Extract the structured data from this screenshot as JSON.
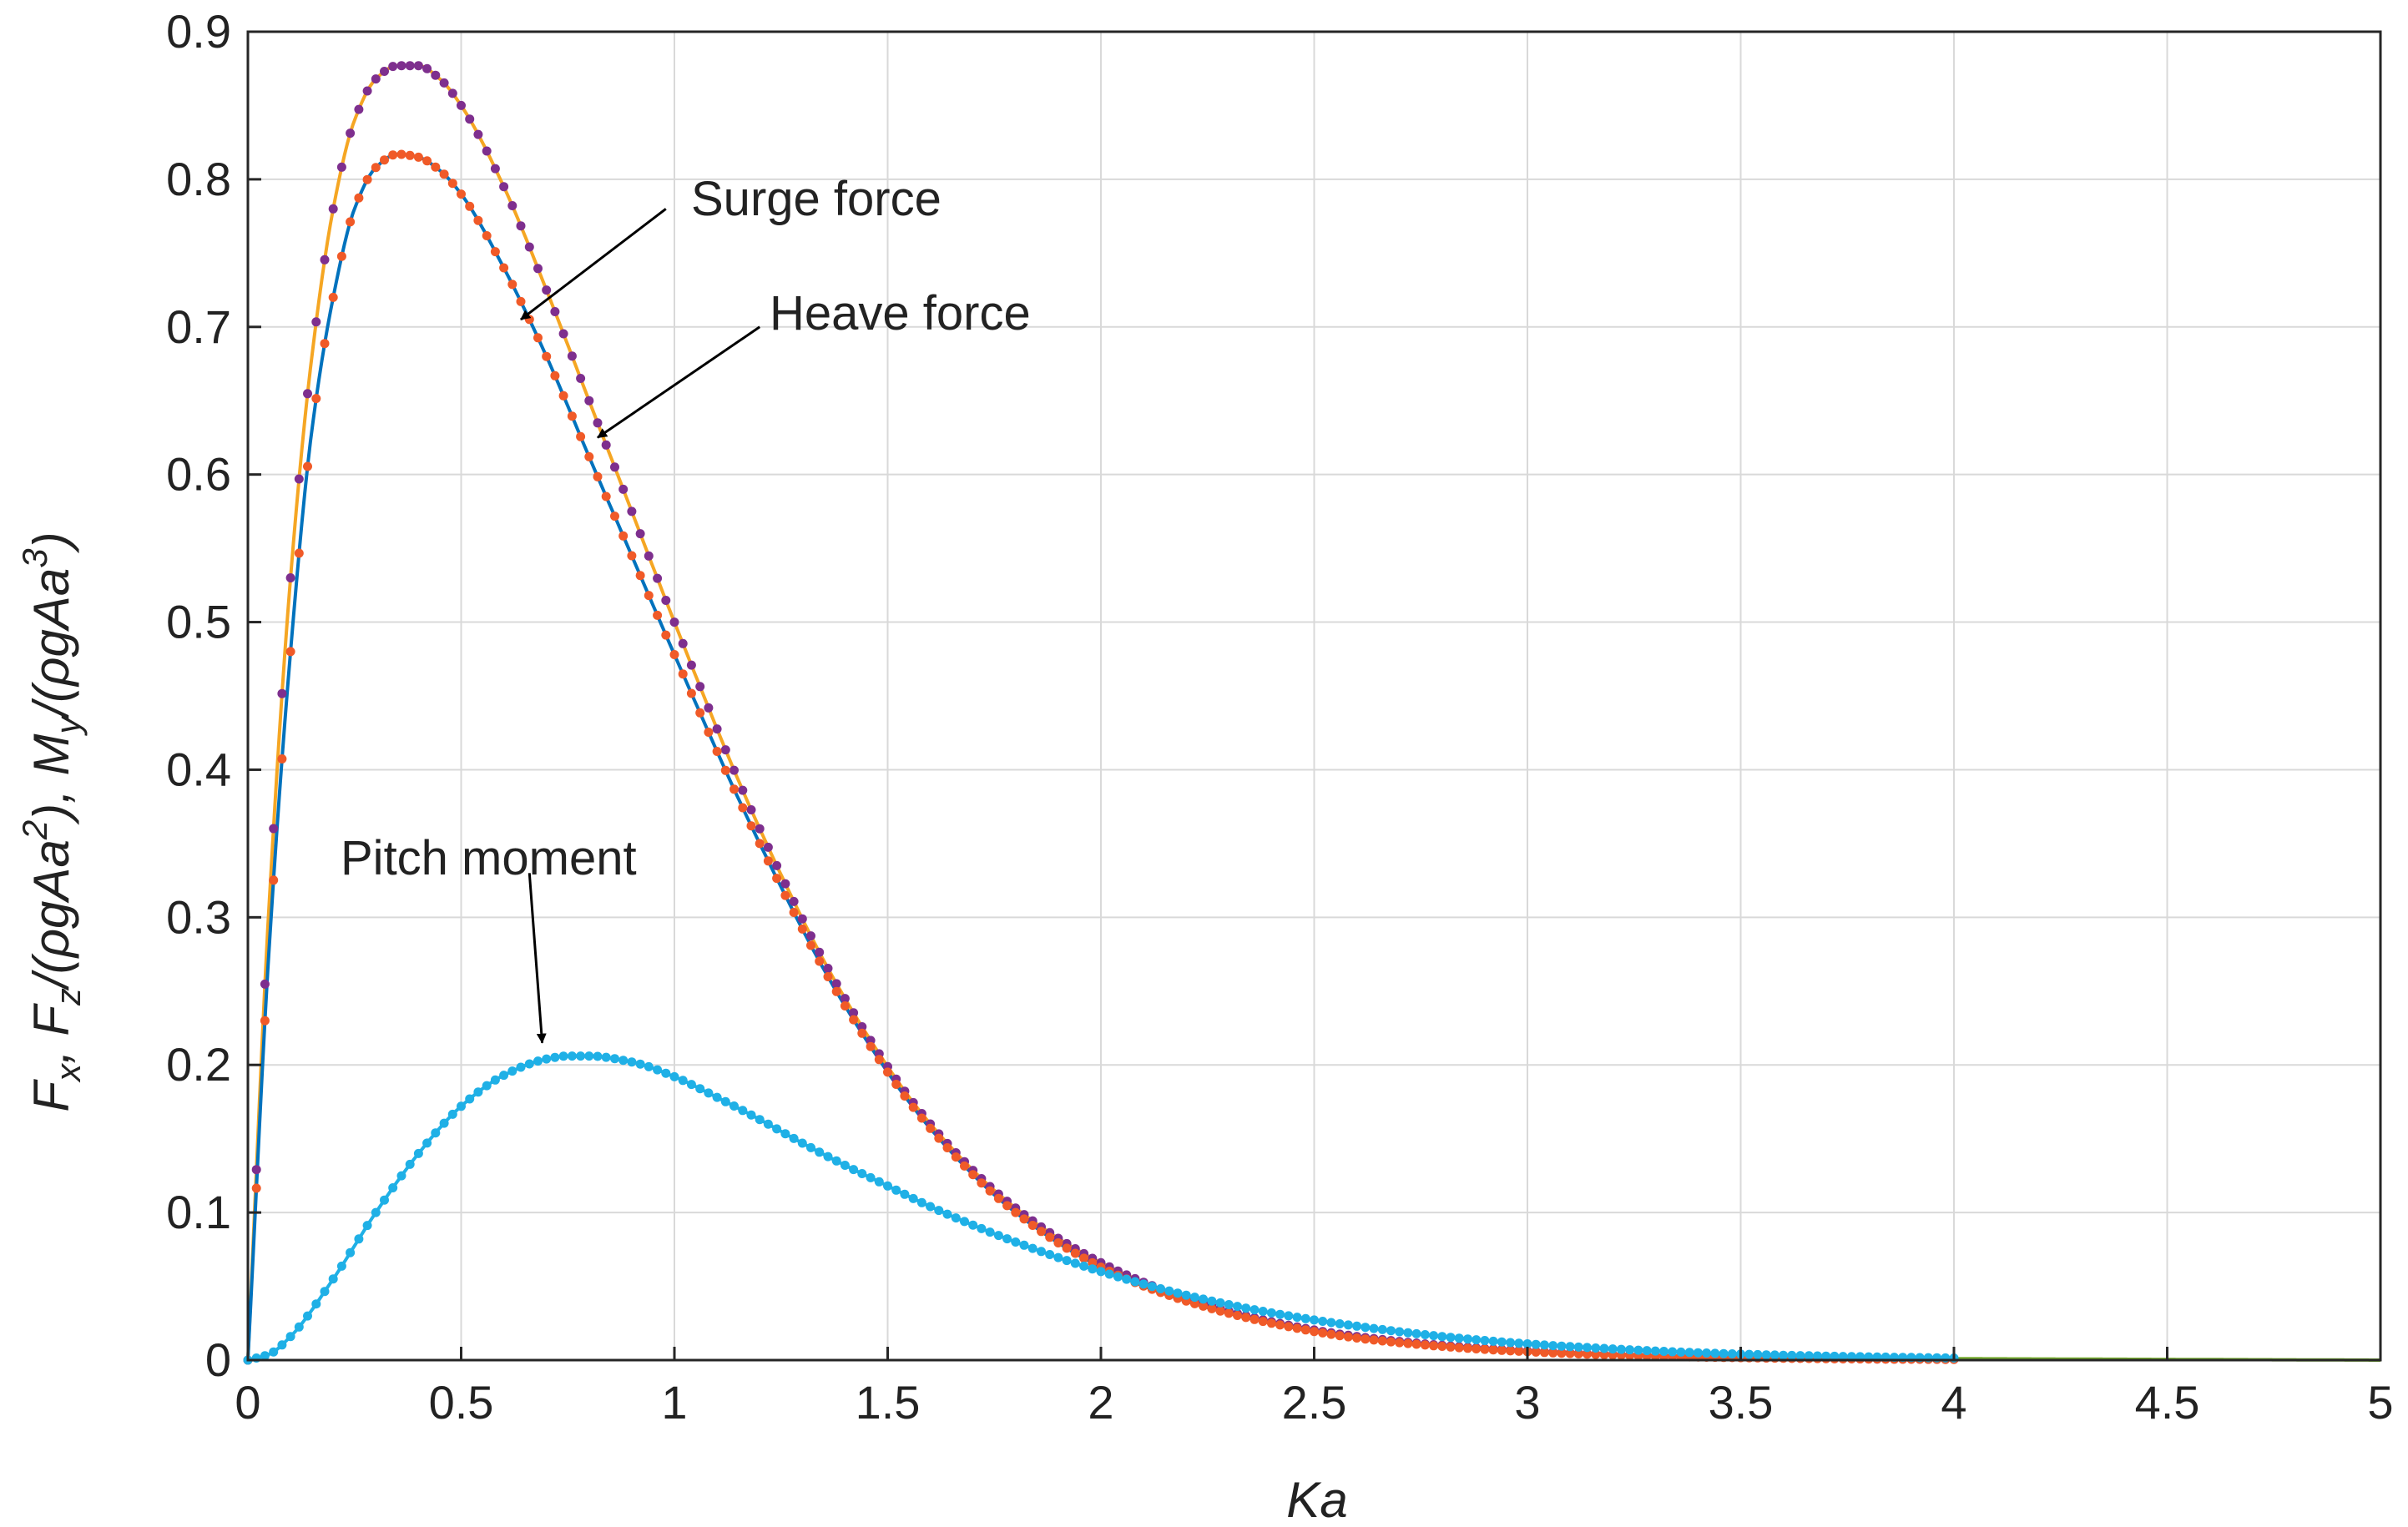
{
  "chart_data": {
    "type": "line",
    "xlabel": "Ka",
    "ylabel": "F_x, F_z/(ρgAa²), M_y/(ρgAa³)",
    "xlim": [
      0,
      5
    ],
    "ylim": [
      0,
      0.9
    ],
    "grid": true,
    "x_ticks": [
      "0",
      "0.5",
      "1",
      "1.5",
      "2",
      "2.5",
      "3",
      "3.5",
      "4",
      "4.5",
      "5"
    ],
    "y_ticks": [
      "0",
      "0.1",
      "0.2",
      "0.3",
      "0.4",
      "0.5",
      "0.6",
      "0.7",
      "0.8",
      "0.9"
    ],
    "series": [
      {
        "key": "surge",
        "line_color": "#F5A623",
        "marker_color": "#7E2F8E",
        "x": [
          0,
          0.05,
          0.1,
          0.15,
          0.2,
          0.25,
          0.3,
          0.35,
          0.4,
          0.45,
          0.5,
          0.6,
          0.7,
          0.8,
          0.9,
          1.0,
          1.2,
          1.4,
          1.6,
          1.8,
          2.0,
          2.2,
          2.4,
          2.6,
          2.8,
          3.0,
          3.2,
          3.4,
          3.6,
          3.8,
          4.0
        ],
        "y": [
          0,
          0.31,
          0.53,
          0.68,
          0.78,
          0.84,
          0.868,
          0.877,
          0.877,
          0.868,
          0.85,
          0.795,
          0.725,
          0.65,
          0.575,
          0.5,
          0.36,
          0.245,
          0.16,
          0.103,
          0.066,
          0.042,
          0.026,
          0.016,
          0.01,
          0.0062,
          0.0038,
          0.0023,
          0.0014,
          0.0008,
          0.0005
        ]
      },
      {
        "key": "heave",
        "line_color": "#0072BD",
        "marker_color": "#F05A28",
        "x": [
          0,
          0.05,
          0.1,
          0.15,
          0.2,
          0.25,
          0.3,
          0.35,
          0.4,
          0.45,
          0.5,
          0.6,
          0.7,
          0.8,
          0.9,
          1.0,
          1.2,
          1.4,
          1.6,
          1.8,
          2.0,
          2.2,
          2.4,
          2.6,
          2.8,
          3.0,
          3.2,
          3.4,
          3.6,
          3.8,
          4.0
        ],
        "y": [
          0,
          0.28,
          0.48,
          0.63,
          0.72,
          0.78,
          0.808,
          0.817,
          0.815,
          0.806,
          0.79,
          0.74,
          0.68,
          0.612,
          0.545,
          0.478,
          0.35,
          0.24,
          0.157,
          0.1,
          0.063,
          0.04,
          0.025,
          0.015,
          0.0093,
          0.0057,
          0.0035,
          0.0021,
          0.0013,
          0.0008,
          0.0005
        ]
      },
      {
        "key": "pitch",
        "line_color": "#1FB0E6",
        "marker_color": "#1FB0E6",
        "x": [
          0,
          0.05,
          0.1,
          0.2,
          0.3,
          0.4,
          0.5,
          0.6,
          0.7,
          0.75,
          0.8,
          0.9,
          1.0,
          1.1,
          1.2,
          1.3,
          1.4,
          1.5,
          1.6,
          1.8,
          2.0,
          2.2,
          2.4,
          2.6,
          2.8,
          3.0,
          3.2,
          3.4,
          3.6,
          3.8,
          4.0
        ],
        "y": [
          0,
          0.004,
          0.016,
          0.055,
          0.1,
          0.14,
          0.172,
          0.193,
          0.204,
          0.206,
          0.206,
          0.202,
          0.192,
          0.178,
          0.163,
          0.147,
          0.132,
          0.118,
          0.104,
          0.08,
          0.06,
          0.044,
          0.032,
          0.023,
          0.016,
          0.011,
          0.0076,
          0.005,
          0.0033,
          0.0022,
          0.0014
        ]
      },
      {
        "key": "tail",
        "line_color": "#77AC30",
        "x": [
          4,
          5
        ],
        "y": [
          0.001,
          0
        ]
      }
    ],
    "annotations": [
      {
        "key": "surge",
        "text": "Surge force",
        "arrow_from": [
          0.98,
          0.78
        ],
        "arrow_to": [
          0.64,
          0.705
        ]
      },
      {
        "key": "heave",
        "text": "Heave force",
        "arrow_from": [
          1.2,
          0.7
        ],
        "arrow_to": [
          0.82,
          0.625
        ]
      },
      {
        "key": "pitch",
        "text": "Pitch moment",
        "arrow_from": [
          0.66,
          0.33
        ],
        "arrow_to": [
          0.69,
          0.215
        ]
      }
    ]
  }
}
